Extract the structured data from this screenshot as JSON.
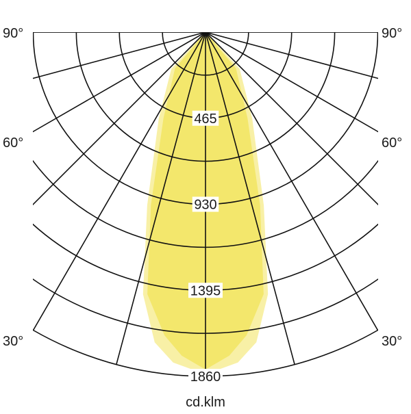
{
  "chart_data": {
    "type": "polar",
    "title": "",
    "unit_label": "cd.klm",
    "r_max": 1860,
    "ring_count": 8,
    "ring_labels": [
      "465",
      "930",
      "1395",
      "1860"
    ],
    "ring_label_values": [
      465,
      930,
      1395,
      1860
    ],
    "radial_step_deg": 15,
    "angle_labels": {
      "left": [
        "90°",
        "60°",
        "30°"
      ],
      "right": [
        "90°",
        "60°",
        "30°"
      ],
      "values": [
        90,
        60,
        30
      ]
    },
    "grid": true,
    "series": [
      {
        "color": "#f8f0a6",
        "points": [
          [
            0,
            1849
          ],
          [
            5.6,
            1794
          ],
          [
            9.3,
            1698
          ],
          [
            13.4,
            1456
          ],
          [
            18.6,
            987
          ],
          [
            28.4,
            530
          ],
          [
            43,
            270
          ],
          [
            60,
            0
          ]
        ]
      },
      {
        "color": "#f3e76c",
        "points": [
          [
            0,
            1823
          ],
          [
            4.2,
            1753
          ],
          [
            7.7,
            1653
          ],
          [
            12.5,
            1450
          ],
          [
            17.5,
            980
          ],
          [
            26,
            518
          ],
          [
            40,
            256
          ],
          [
            55,
            0
          ]
        ]
      }
    ]
  }
}
